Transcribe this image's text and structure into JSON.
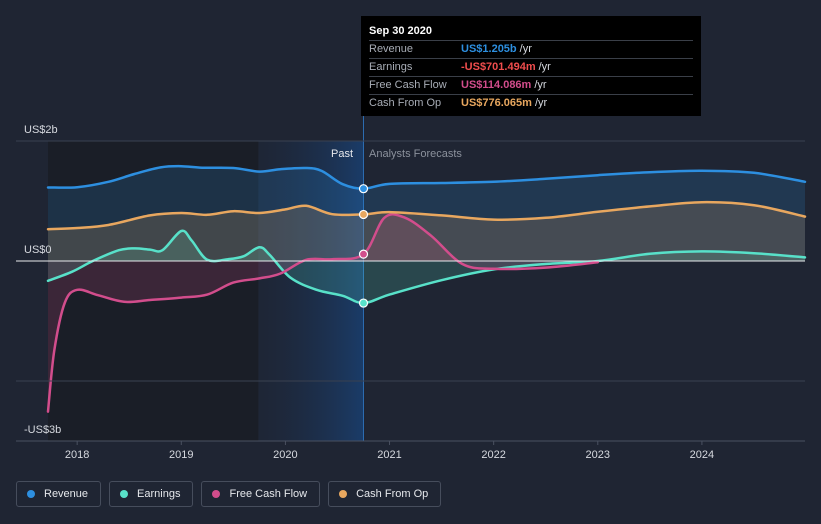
{
  "chart_data": {
    "type": "area",
    "y_labels": {
      "top": "US$2b",
      "zero": "US$0",
      "bottom": "-US$3b"
    },
    "ylim": [
      -3000,
      2000
    ],
    "xlim": [
      2017.72,
      2024.99
    ],
    "x_ticks": [
      {
        "label": "2018",
        "value": 2018
      },
      {
        "label": "2019",
        "value": 2019
      },
      {
        "label": "2020",
        "value": 2020
      },
      {
        "label": "2021",
        "value": 2021
      },
      {
        "label": "2022",
        "value": 2022
      },
      {
        "label": "2023",
        "value": 2023
      },
      {
        "label": "2024",
        "value": 2024
      }
    ],
    "past_label": "Past",
    "forecast_label": "Analysts Forecasts",
    "past_end": 2020.75,
    "series": [
      {
        "name": "Revenue",
        "color": "#2d8fe0",
        "points": [
          [
            2017.72,
            1225
          ],
          [
            2018.0,
            1230
          ],
          [
            2018.3,
            1320
          ],
          [
            2018.55,
            1450
          ],
          [
            2018.8,
            1560
          ],
          [
            2019.0,
            1580
          ],
          [
            2019.2,
            1555
          ],
          [
            2019.5,
            1550
          ],
          [
            2019.75,
            1490
          ],
          [
            2019.95,
            1530
          ],
          [
            2020.2,
            1550
          ],
          [
            2020.35,
            1500
          ],
          [
            2020.55,
            1280
          ],
          [
            2020.75,
            1205
          ],
          [
            2021.0,
            1285
          ],
          [
            2021.5,
            1300
          ],
          [
            2022.0,
            1320
          ],
          [
            2022.5,
            1370
          ],
          [
            2023.0,
            1430
          ],
          [
            2023.5,
            1480
          ],
          [
            2024.0,
            1505
          ],
          [
            2024.5,
            1470
          ],
          [
            2024.99,
            1320
          ]
        ]
      },
      {
        "name": "Earnings",
        "color": "#58e1c9",
        "points": [
          [
            2017.72,
            -330
          ],
          [
            2017.95,
            -180
          ],
          [
            2018.15,
            0
          ],
          [
            2018.4,
            180
          ],
          [
            2018.55,
            210
          ],
          [
            2018.7,
            190
          ],
          [
            2018.82,
            180
          ],
          [
            2019.0,
            500
          ],
          [
            2019.1,
            340
          ],
          [
            2019.25,
            20
          ],
          [
            2019.45,
            30
          ],
          [
            2019.6,
            80
          ],
          [
            2019.75,
            230
          ],
          [
            2019.85,
            100
          ],
          [
            2020.05,
            -280
          ],
          [
            2020.3,
            -480
          ],
          [
            2020.55,
            -580
          ],
          [
            2020.75,
            -701
          ],
          [
            2021.0,
            -560
          ],
          [
            2021.5,
            -320
          ],
          [
            2022.0,
            -140
          ],
          [
            2022.5,
            -50
          ],
          [
            2023.0,
            0
          ],
          [
            2023.5,
            120
          ],
          [
            2024.0,
            160
          ],
          [
            2024.5,
            130
          ],
          [
            2024.99,
            60
          ]
        ]
      },
      {
        "name": "Free Cash Flow",
        "color": "#d24d8c",
        "points": [
          [
            2017.72,
            -2510
          ],
          [
            2017.78,
            -1500
          ],
          [
            2017.88,
            -700
          ],
          [
            2018.0,
            -480
          ],
          [
            2018.2,
            -570
          ],
          [
            2018.45,
            -680
          ],
          [
            2018.7,
            -650
          ],
          [
            2019.0,
            -610
          ],
          [
            2019.25,
            -560
          ],
          [
            2019.5,
            -360
          ],
          [
            2019.75,
            -290
          ],
          [
            2019.95,
            -210
          ],
          [
            2020.2,
            20
          ],
          [
            2020.45,
            30
          ],
          [
            2020.75,
            114
          ],
          [
            2020.95,
            720
          ],
          [
            2021.15,
            720
          ],
          [
            2021.4,
            420
          ],
          [
            2021.7,
            -50
          ],
          [
            2022.0,
            -130
          ],
          [
            2022.5,
            -110
          ],
          [
            2023.0,
            -20
          ]
        ]
      },
      {
        "name": "Cash From Op",
        "color": "#e8a75f",
        "points": [
          [
            2017.72,
            530
          ],
          [
            2018.0,
            550
          ],
          [
            2018.3,
            600
          ],
          [
            2018.7,
            760
          ],
          [
            2019.0,
            800
          ],
          [
            2019.25,
            770
          ],
          [
            2019.5,
            830
          ],
          [
            2019.75,
            800
          ],
          [
            2020.0,
            860
          ],
          [
            2020.2,
            920
          ],
          [
            2020.45,
            780
          ],
          [
            2020.75,
            776
          ],
          [
            2021.0,
            815
          ],
          [
            2021.5,
            760
          ],
          [
            2022.0,
            690
          ],
          [
            2022.5,
            720
          ],
          [
            2023.0,
            820
          ],
          [
            2023.5,
            910
          ],
          [
            2024.0,
            980
          ],
          [
            2024.5,
            930
          ],
          [
            2024.99,
            740
          ]
        ]
      }
    ]
  },
  "tooltip": {
    "date": "Sep 30 2020",
    "rows": [
      {
        "label": "Revenue",
        "value": "US$1.205b",
        "unit": "/yr",
        "color": "#2d8fe0"
      },
      {
        "label": "Earnings",
        "value": "-US$701.494m",
        "unit": "/yr",
        "color": "#f04d4d"
      },
      {
        "label": "Free Cash Flow",
        "value": "US$114.086m",
        "unit": "/yr",
        "color": "#d24d8c"
      },
      {
        "label": "Cash From Op",
        "value": "US$776.065m",
        "unit": "/yr",
        "color": "#e8a75f"
      }
    ]
  },
  "legend": [
    {
      "label": "Revenue",
      "color": "#2d8fe0"
    },
    {
      "label": "Earnings",
      "color": "#58e1c9"
    },
    {
      "label": "Free Cash Flow",
      "color": "#d24d8c"
    },
    {
      "label": "Cash From Op",
      "color": "#e8a75f"
    }
  ]
}
